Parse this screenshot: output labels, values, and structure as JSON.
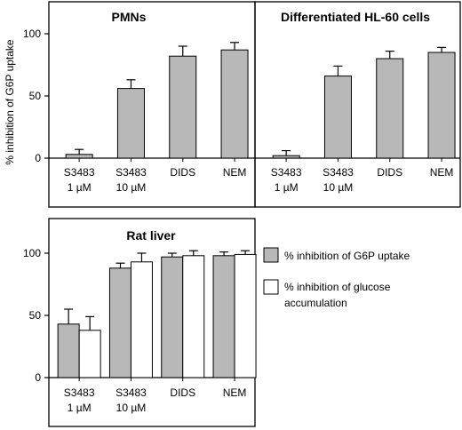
{
  "ylabel": "% inhibition of G6P uptake",
  "chart_data": [
    {
      "type": "bar",
      "title": "PMNs",
      "ylim": [
        0,
        120
      ],
      "yticks": [
        0,
        50,
        100
      ],
      "categories": [
        [
          "S3483",
          "1 µM"
        ],
        [
          "S3483",
          "10 µM"
        ],
        [
          "DIDS"
        ],
        [
          "NEM"
        ]
      ],
      "series": [
        {
          "name": "% inhibition of G6P uptake",
          "values": [
            3,
            56,
            82,
            87
          ],
          "errors": [
            4,
            7,
            8,
            6
          ]
        }
      ]
    },
    {
      "type": "bar",
      "title": "Differentiated HL-60 cells",
      "ylim": [
        0,
        120
      ],
      "yticks": [
        0,
        50,
        100
      ],
      "categories": [
        [
          "S3483",
          "1 µM"
        ],
        [
          "S3483",
          "10 µM"
        ],
        [
          "DIDS"
        ],
        [
          "NEM"
        ]
      ],
      "series": [
        {
          "name": "% inhibition of G6P uptake",
          "values": [
            2,
            66,
            80,
            85
          ],
          "errors": [
            4,
            8,
            6,
            4
          ]
        }
      ]
    },
    {
      "type": "bar",
      "title": "Rat liver",
      "ylim": [
        0,
        120
      ],
      "yticks": [
        0,
        50,
        100
      ],
      "categories": [
        [
          "S3483",
          "1 µM"
        ],
        [
          "S3483",
          "10 µM"
        ],
        [
          "DIDS"
        ],
        [
          "NEM"
        ]
      ],
      "series": [
        {
          "name": "% inhibition of G6P uptake",
          "values": [
            43,
            88,
            97,
            98
          ],
          "errors": [
            12,
            4,
            3,
            3
          ]
        },
        {
          "name": "% inhibition of glucose accumulation",
          "values": [
            38,
            93,
            98,
            99
          ],
          "errors": [
            11,
            7,
            4,
            3
          ]
        }
      ]
    }
  ],
  "legend": [
    {
      "label_lines": [
        "% inhibition of G6P uptake"
      ],
      "fill": "#b8b8b8"
    },
    {
      "label_lines": [
        "% inhibition of glucose",
        "accumulation"
      ],
      "fill": "#ffffff"
    }
  ]
}
